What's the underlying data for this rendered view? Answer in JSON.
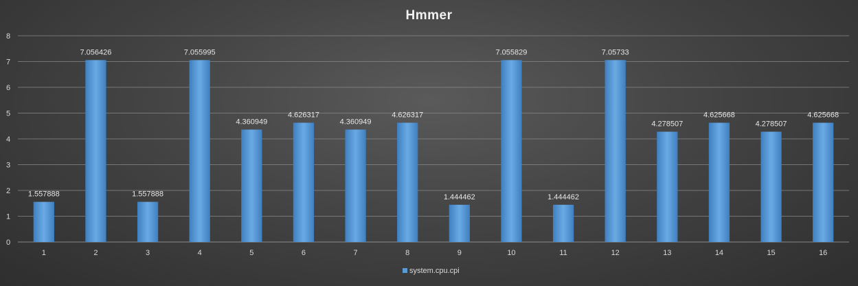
{
  "chart_data": {
    "type": "bar",
    "title": "Hmmer",
    "xlabel": "",
    "ylabel": "",
    "categories": [
      "1",
      "2",
      "3",
      "4",
      "5",
      "6",
      "7",
      "8",
      "9",
      "10",
      "11",
      "12",
      "13",
      "14",
      "15",
      "16"
    ],
    "series": [
      {
        "name": "system.cpu.cpi",
        "values": [
          1.557888,
          7.056426,
          1.557888,
          7.055995,
          4.360949,
          4.626317,
          4.360949,
          4.626317,
          1.444462,
          7.055829,
          1.444462,
          7.05733,
          4.278507,
          4.625668,
          4.278507,
          4.625668
        ],
        "data_labels": [
          "1.557888",
          "7.056426",
          "1.557888",
          "7.055995",
          "4.360949",
          "4.626317",
          "4.360949",
          "4.626317",
          "1.444462",
          "7.055829",
          "1.444462",
          "7.05733",
          "4.278507",
          "4.625668",
          "4.278507",
          "4.625668"
        ]
      }
    ],
    "ylim": [
      0,
      8
    ],
    "yticks": [
      "0",
      "1",
      "2",
      "3",
      "4",
      "5",
      "6",
      "7",
      "8"
    ],
    "grid": true,
    "legend_position": "bottom",
    "colors": {
      "bar": "#5b9bd5",
      "bar_light": "#6aaae4",
      "bar_dark": "#3f7fbf",
      "grid": "#8a8a8a",
      "text": "#d9d9d9"
    }
  }
}
